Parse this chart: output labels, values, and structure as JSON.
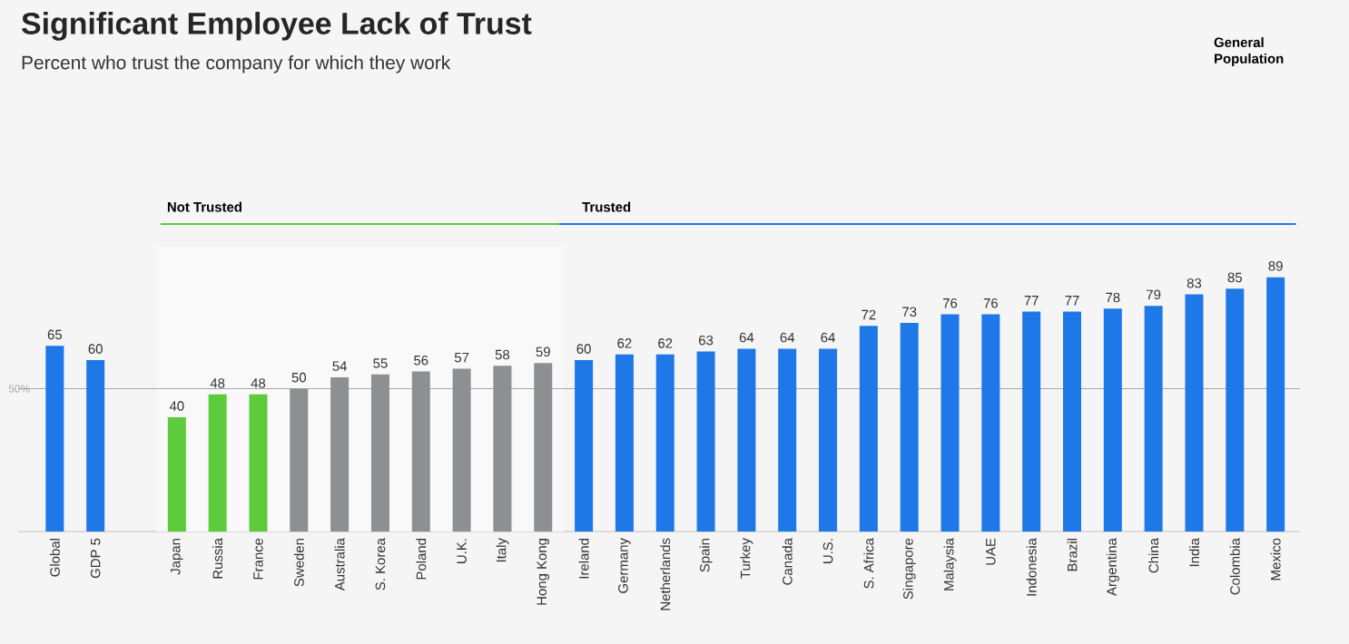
{
  "chart_data": {
    "type": "bar",
    "title": "Significant Employee Lack of Trust",
    "subtitle": "Percent who trust the company for which they work",
    "categories": [
      "Global",
      "GDP 5",
      null,
      "Japan",
      "Russia",
      "France",
      "Sweden",
      "Australia",
      "S. Korea",
      "Poland",
      "U.K.",
      "Italy",
      "Hong Kong",
      "Ireland",
      "Germany",
      "Netherlands",
      "Spain",
      "Turkey",
      "Canada",
      "U.S.",
      "S. Africa",
      "Singapore",
      "Malaysia",
      "UAE",
      "Indonesia",
      "Brazil",
      "Argentina",
      "China",
      "India",
      "Colombia",
      "Mexico"
    ],
    "values": [
      65,
      60,
      null,
      40,
      48,
      48,
      50,
      54,
      55,
      56,
      57,
      58,
      59,
      60,
      62,
      62,
      63,
      64,
      64,
      64,
      72,
      73,
      76,
      76,
      77,
      77,
      78,
      79,
      83,
      85,
      89
    ],
    "colors": [
      "#1f78e8",
      "#1f78e8",
      null,
      "#5ccb3c",
      "#5ccb3c",
      "#5ccb3c",
      "#8c9090",
      "#8c9090",
      "#8c9090",
      "#8c9090",
      "#8c9090",
      "#8c9090",
      "#8c9090",
      "#1f78e8",
      "#1f78e8",
      "#1f78e8",
      "#1f78e8",
      "#1f78e8",
      "#1f78e8",
      "#1f78e8",
      "#1f78e8",
      "#1f78e8",
      "#1f78e8",
      "#1f78e8",
      "#1f78e8",
      "#1f78e8",
      "#1f78e8",
      "#1f78e8",
      "#1f78e8",
      "#1f78e8",
      "#1f78e8"
    ],
    "data_labels": true,
    "ref_lines": [
      {
        "axis": "y",
        "value": 50,
        "label": "50%",
        "color": "#a8a8a8"
      }
    ],
    "bands": [
      {
        "axis": "x",
        "from": "Japan",
        "to": "Hong Kong",
        "label": "Not Trusted",
        "color": "#f9f9f9"
      }
    ],
    "annotations": [
      "Trusted",
      "General Population"
    ]
  }
}
